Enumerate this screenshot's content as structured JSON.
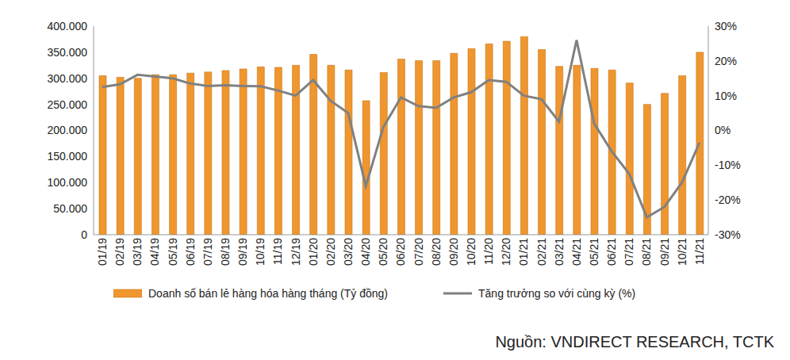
{
  "chart_data": {
    "type": "bar",
    "categories": [
      "01/19",
      "02/19",
      "03/19",
      "04/19",
      "05/19",
      "06/19",
      "07/19",
      "08/19",
      "09/19",
      "10/19",
      "11/19",
      "12/19",
      "01/20",
      "02/20",
      "03/20",
      "04/20",
      "05/20",
      "06/20",
      "07/20",
      "08/20",
      "09/20",
      "10/20",
      "11/20",
      "12/20",
      "01/21",
      "02/21",
      "03/21",
      "04/21",
      "05/21",
      "06/21",
      "07/21",
      "08/21",
      "09/21",
      "10/21",
      "11/21"
    ],
    "series": [
      {
        "name": "Doanh số bán lẻ hàng hóa hàng tháng (Tỷ đồng)",
        "type": "bar",
        "color": "#f0962e",
        "values": [
          305000,
          302000,
          300000,
          307000,
          307000,
          310000,
          312000,
          315000,
          318000,
          322000,
          321000,
          325000,
          346000,
          325000,
          316000,
          257000,
          311000,
          337000,
          334000,
          334000,
          348000,
          357000,
          366000,
          371000,
          380000,
          355000,
          323000,
          325000,
          319000,
          316000,
          291000,
          250000,
          271000,
          305000,
          350000
        ]
      },
      {
        "name": "Tăng trưởng so với cùng kỳ (%)",
        "type": "line",
        "color": "#808080",
        "axis": "y2",
        "values": [
          12.5,
          13.3,
          16,
          15.5,
          15,
          13.5,
          12.8,
          13,
          12.8,
          12.7,
          11.5,
          10,
          14.5,
          8.5,
          5,
          -16,
          1,
          9.5,
          7,
          6.5,
          9.5,
          11,
          14.5,
          14,
          10,
          9,
          2.5,
          26,
          2,
          -6,
          -12.5,
          -25,
          -22,
          -15,
          -3.5
        ]
      }
    ],
    "ylim": [
      0,
      400000
    ],
    "yticks": [
      0,
      {
        "value": 50000,
        "label": "50.000"
      },
      {
        "value": 100000,
        "label": "100.000"
      },
      {
        "value": 150000,
        "label": "150.000"
      },
      {
        "value": 200000,
        "label": "200.000"
      },
      {
        "value": 250000,
        "label": "250.000"
      },
      {
        "value": 300000,
        "label": "300.000"
      },
      {
        "value": 350000,
        "label": "350.000"
      },
      {
        "value": 400000,
        "label": "400.000"
      }
    ],
    "y2lim": [
      -30,
      30
    ],
    "y2ticks": [
      {
        "value": -30,
        "label": "-30%"
      },
      {
        "value": -20,
        "label": "-20%"
      },
      {
        "value": -10,
        "label": "-10%"
      },
      {
        "value": 0,
        "label": "0%"
      },
      {
        "value": 10,
        "label": "10%"
      },
      {
        "value": 20,
        "label": "20%"
      },
      {
        "value": 30,
        "label": "30%"
      }
    ],
    "grid": false,
    "legend": "bottom",
    "source": "Nguồn: VNDIRECT RESEARCH, TCTK"
  }
}
